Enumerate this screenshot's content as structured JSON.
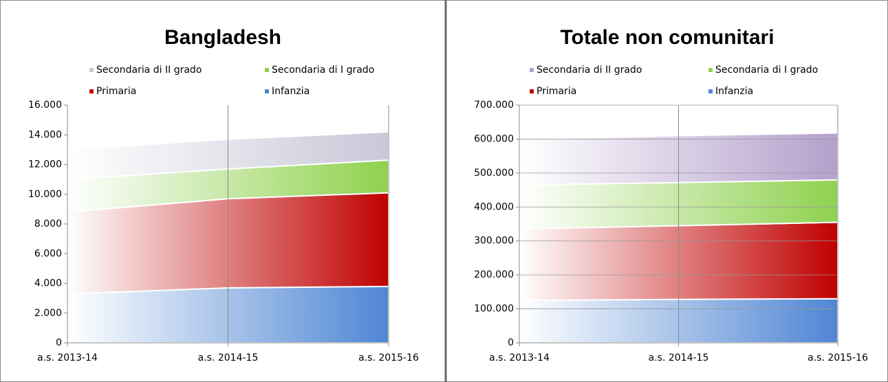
{
  "chart_data": [
    {
      "type": "area",
      "stacked": true,
      "title": "Bangladesh",
      "grid": false,
      "categories": [
        "a.s. 2013-14",
        "a.s. 2014-15",
        "a.s. 2015-16"
      ],
      "ylim": [
        0,
        16000
      ],
      "yticks": [
        0,
        {
          "value": 2000,
          "label": "2.000"
        },
        {
          "value": 4000,
          "label": "4.000"
        },
        {
          "value": 6000,
          "label": "6.000"
        },
        {
          "value": 8000,
          "label": "8.000"
        },
        {
          "value": 10000,
          "label": "10.000"
        },
        {
          "value": 12000,
          "label": "12.000"
        },
        {
          "value": 14000,
          "label": "14.000"
        },
        {
          "value": 16000,
          "label": "16.000"
        }
      ],
      "series": [
        {
          "name": "Infanzia",
          "color": "#4f86d4",
          "values": [
            3300,
            3700,
            3800
          ]
        },
        {
          "name": "Primaria",
          "color": "#c00000",
          "values": [
            5500,
            6000,
            6300
          ]
        },
        {
          "name": "Secondaria di I grado",
          "color": "#8fd14f",
          "values": [
            2200,
            2000,
            2200
          ]
        },
        {
          "name": "Secondaria di II grado",
          "color": "#c8c8d8",
          "values": [
            2000,
            2000,
            1900
          ]
        }
      ]
    },
    {
      "type": "area",
      "stacked": true,
      "title": "Totale non comunitari",
      "grid": true,
      "categories": [
        "a.s. 2013-14",
        "a.s. 2014-15",
        "a.s. 2015-16"
      ],
      "ylim": [
        0,
        700000
      ],
      "yticks": [
        0,
        {
          "value": 100000,
          "label": "100.000"
        },
        {
          "value": 200000,
          "label": "200.000"
        },
        {
          "value": 300000,
          "label": "300.000"
        },
        {
          "value": 400000,
          "label": "400.000"
        },
        {
          "value": 500000,
          "label": "500.000"
        },
        {
          "value": 600000,
          "label": "600.000"
        },
        {
          "value": 700000,
          "label": "700.000"
        }
      ],
      "series": [
        {
          "name": "Infanzia",
          "color": "#4f86d4",
          "values": [
            125000,
            128000,
            130000
          ]
        },
        {
          "name": "Primaria",
          "color": "#c00000",
          "values": [
            210000,
            217000,
            225000
          ]
        },
        {
          "name": "Secondaria di I grado",
          "color": "#8fd14f",
          "values": [
            130000,
            127000,
            125000
          ]
        },
        {
          "name": "Secondaria di II grado",
          "color": "#b4a0cc",
          "values": [
            135000,
            138000,
            138000
          ]
        }
      ]
    }
  ]
}
